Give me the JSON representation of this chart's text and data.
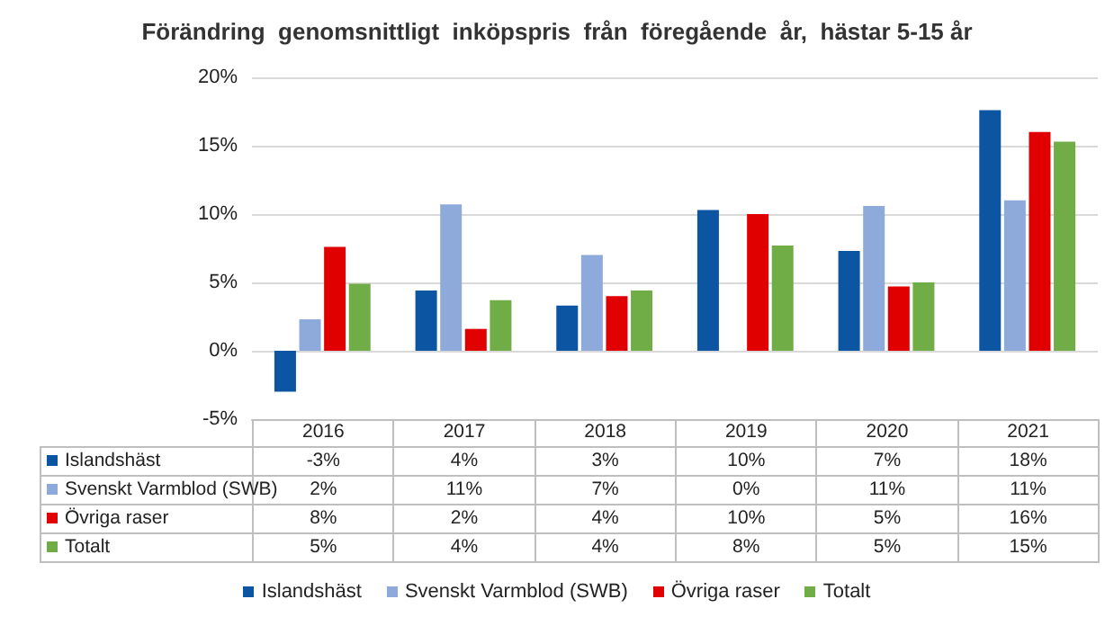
{
  "chart_data": {
    "type": "bar",
    "title": "Förändring  genomsnittligt  inköpspris  från  föregående  år,  hästar 5-15 år",
    "categories": [
      "2016",
      "2017",
      "2018",
      "2019",
      "2020",
      "2021"
    ],
    "series": [
      {
        "name": "Islandshäst",
        "color": "#0b55a3",
        "values": [
          -3.0,
          4.4,
          3.3,
          10.3,
          7.3,
          17.6
        ],
        "value_labels": [
          "-3%",
          "4%",
          "3%",
          "10%",
          "7%",
          "18%"
        ]
      },
      {
        "name": "Svenskt Varmblod (SWB)",
        "color": "#8eaadb",
        "values": [
          2.3,
          10.7,
          7.0,
          0,
          10.6,
          11.0
        ],
        "value_labels": [
          "2%",
          "11%",
          "7%",
          "0%",
          "11%",
          "11%"
        ]
      },
      {
        "name": "Övriga raser",
        "color": "#e00000",
        "values": [
          7.6,
          1.6,
          4.0,
          10.0,
          4.7,
          16.0
        ],
        "value_labels": [
          "8%",
          "2%",
          "4%",
          "10%",
          "5%",
          "16%"
        ]
      },
      {
        "name": "Totalt",
        "color": "#70ad47",
        "values": [
          4.9,
          3.7,
          4.4,
          7.7,
          5.0,
          15.3
        ],
        "value_labels": [
          "5%",
          "4%",
          "4%",
          "8%",
          "5%",
          "15%"
        ]
      }
    ],
    "ylim": [
      -5,
      20
    ],
    "yticks": [
      {
        "value": -5,
        "label": "-5%"
      },
      {
        "value": 0,
        "label": "0%"
      },
      {
        "value": 5,
        "label": "5%"
      },
      {
        "value": 10,
        "label": "10%"
      },
      {
        "value": 15,
        "label": "15%"
      },
      {
        "value": 20,
        "label": "20%"
      }
    ],
    "grid": true,
    "legend": "bottom"
  }
}
